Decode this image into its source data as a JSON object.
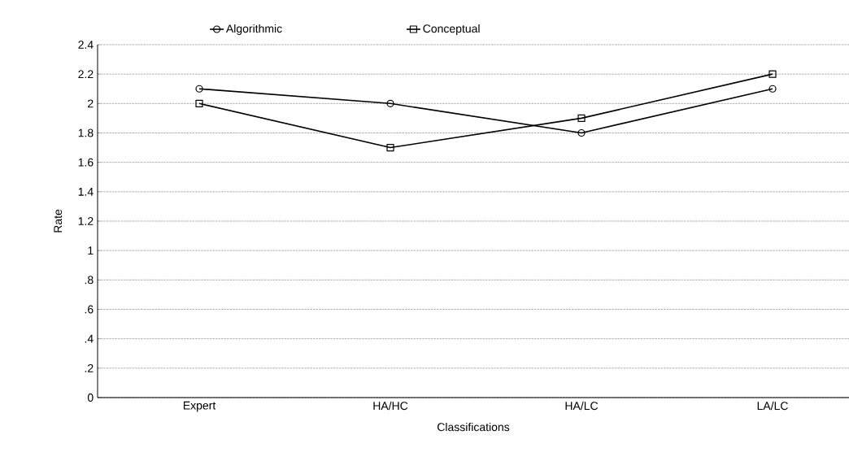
{
  "chart_data": {
    "type": "line",
    "xlabel": "Classifications",
    "ylabel": "Rate",
    "categories": [
      "Expert",
      "HA/HC",
      "HA/LC",
      "LA/LC"
    ],
    "series": [
      {
        "name": "Algorithmic",
        "color": "#000000",
        "marker": "circle",
        "values": [
          2.1,
          2.0,
          1.8,
          2.1
        ]
      },
      {
        "name": "Conceptual",
        "color": "#000000",
        "marker": "square",
        "values": [
          2.0,
          1.7,
          1.9,
          2.2
        ]
      }
    ],
    "ylim": [
      0,
      2.4
    ],
    "yticks": [
      0,
      {
        "value": 0.2,
        "label": ".2"
      },
      {
        "value": 0.4,
        "label": ".4"
      },
      {
        "value": 0.6,
        "label": ".6"
      },
      {
        "value": 0.8,
        "label": ".8"
      },
      1,
      1.2,
      1.4,
      1.6,
      1.8,
      2,
      2.2,
      2.4
    ],
    "grid": "y",
    "legend": "top",
    "line_style": "solid"
  }
}
